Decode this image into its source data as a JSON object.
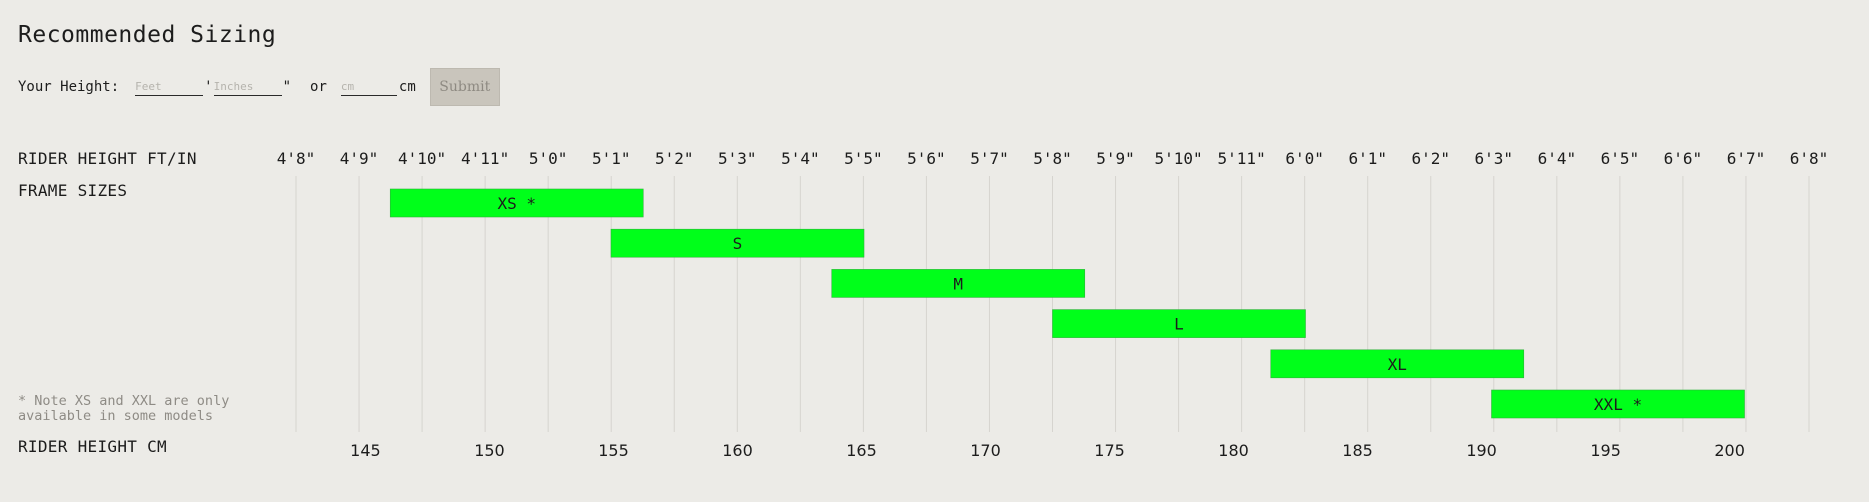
{
  "page": {
    "title": "Recommended Sizing"
  },
  "height_input": {
    "label": "Your Height:",
    "feet_placeholder": "Feet",
    "feet_suffix": "'",
    "inches_placeholder": "Inches",
    "inches_suffix": "\"",
    "or_label": "or",
    "cm_placeholder": "cm",
    "cm_suffix": "cm",
    "submit_label": "Submit"
  },
  "labels": {
    "ft_in_row": "RIDER HEIGHT FT/IN",
    "frame_row": "FRAME SIZES",
    "cm_row": "RIDER HEIGHT CM",
    "note": "* Note XS and XXL are only available in some models"
  },
  "colors": {
    "bar": "#00ff1a",
    "background": "#ecebe7",
    "gridline": "#d6d4cf"
  },
  "chart_data": {
    "type": "bar",
    "orientation": "horizontal-range",
    "x_unit": "cm",
    "ft_in_ticks": [
      "4'8\"",
      "4'9\"",
      "4'10\"",
      "4'11\"",
      "5'0\"",
      "5'1\"",
      "5'2\"",
      "5'3\"",
      "5'4\"",
      "5'5\"",
      "5'6\"",
      "5'7\"",
      "5'8\"",
      "5'9\"",
      "5'10\"",
      "5'11\"",
      "6'0\"",
      "6'1\"",
      "6'2\"",
      "6'3\"",
      "6'4\"",
      "6'5\"",
      "6'6\"",
      "6'7\"",
      "6'8\""
    ],
    "cm_ticks": [
      145,
      150,
      155,
      160,
      165,
      170,
      175,
      180,
      185,
      190,
      195,
      200
    ],
    "xlim_cm": [
      142.2,
      203.2
    ],
    "grid": true,
    "frame_sizes": [
      {
        "name": "XS *",
        "min_cm": 146.0,
        "max_cm": 156.2
      },
      {
        "name": "S",
        "min_cm": 154.9,
        "max_cm": 165.1
      },
      {
        "name": "M",
        "min_cm": 163.8,
        "max_cm": 174.0
      },
      {
        "name": "L",
        "min_cm": 172.7,
        "max_cm": 182.9
      },
      {
        "name": "XL",
        "min_cm": 181.5,
        "max_cm": 191.7
      },
      {
        "name": "XXL *",
        "min_cm": 190.4,
        "max_cm": 200.6
      }
    ]
  }
}
